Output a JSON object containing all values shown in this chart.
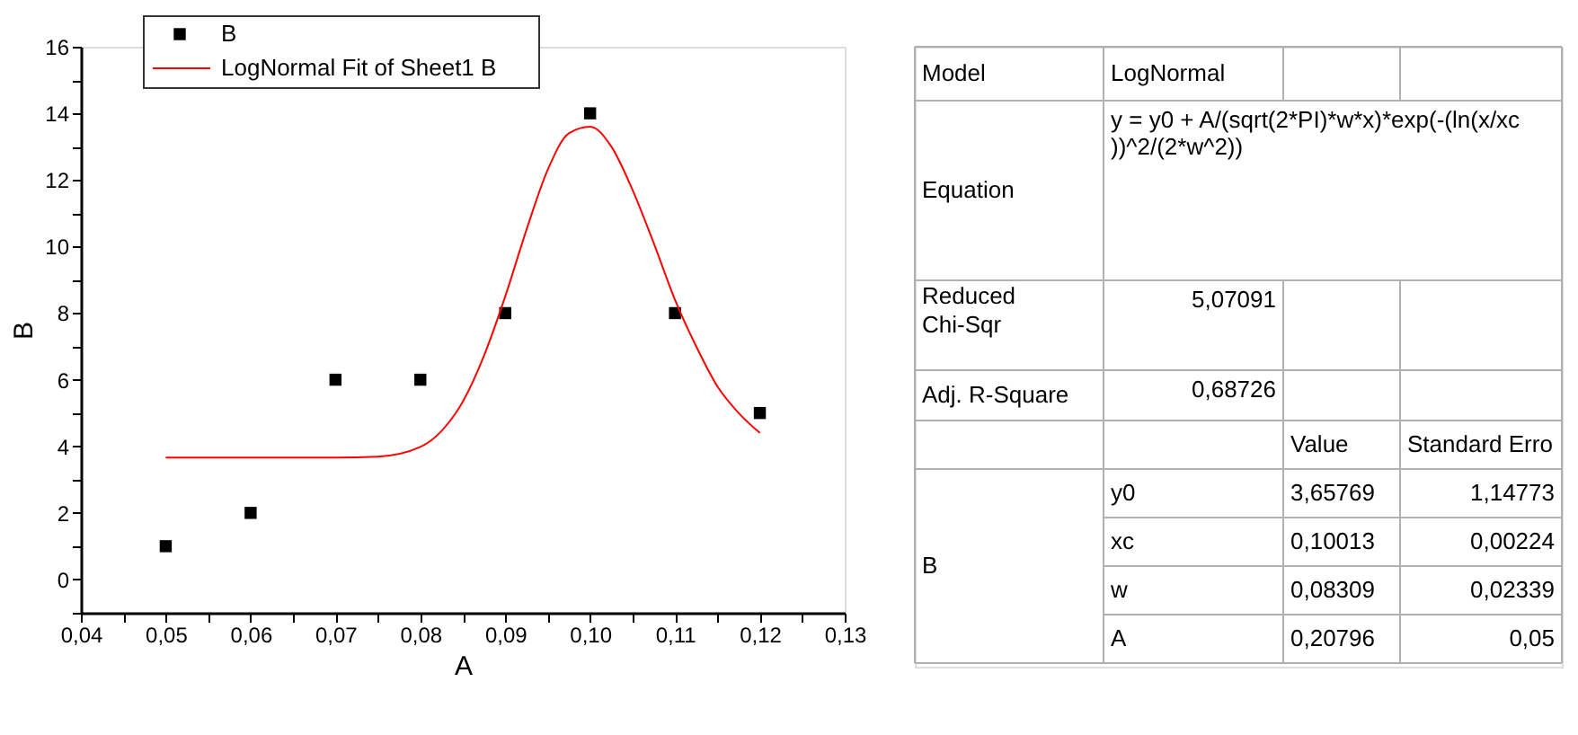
{
  "chart_data": [
    {
      "type": "scatter",
      "xlabel": "A",
      "ylabel": "B",
      "legend": "top left",
      "grid": false,
      "xlim": [
        0.04,
        0.13
      ],
      "xticks": [
        {
          "value": 0.04,
          "label": "0,04"
        },
        {
          "value": 0.045,
          "label": null
        },
        {
          "value": 0.05,
          "label": "0,05"
        },
        {
          "value": 0.055,
          "label": null
        },
        {
          "value": 0.06,
          "label": "0,06"
        },
        {
          "value": 0.065,
          "label": null
        },
        {
          "value": 0.07,
          "label": "0,07"
        },
        {
          "value": 0.075,
          "label": null
        },
        {
          "value": 0.08,
          "label": "0,08"
        },
        {
          "value": 0.085,
          "label": null
        },
        {
          "value": 0.09,
          "label": "0,09"
        },
        {
          "value": 0.095,
          "label": null
        },
        {
          "value": 0.1,
          "label": "0,10"
        },
        {
          "value": 0.105,
          "label": null
        },
        {
          "value": 0.11,
          "label": "0,11"
        },
        {
          "value": 0.115,
          "label": null
        },
        {
          "value": 0.12,
          "label": "0,12"
        },
        {
          "value": 0.125,
          "label": null
        },
        {
          "value": 0.13,
          "label": "0,13"
        }
      ],
      "ylim": [
        -1,
        16
      ],
      "yticks": [
        {
          "value": -1,
          "label": null
        },
        0,
        {
          "value": 1,
          "label": null
        },
        2,
        {
          "value": 3,
          "label": null
        },
        4,
        {
          "value": 5,
          "label": null
        },
        6,
        {
          "value": 7,
          "label": null
        },
        8,
        {
          "value": 9,
          "label": null
        },
        10,
        {
          "value": 11,
          "label": null
        },
        12,
        {
          "value": 13,
          "label": null
        },
        14,
        {
          "value": 15,
          "label": null
        },
        16
      ],
      "series": [
        {
          "name": "B",
          "type": "scatter",
          "marker": "square",
          "color": "#000000",
          "x": [
            0.05,
            0.06,
            0.07,
            0.08,
            0.09,
            0.1,
            0.11,
            0.12
          ],
          "values": [
            1,
            2,
            6,
            6,
            8,
            14,
            8,
            5
          ]
        },
        {
          "name": "LogNormal Fit of Sheet1 B",
          "type": "line",
          "marker": "none",
          "line_style": "solid",
          "color": "#ff0000",
          "x": [
            0.05,
            0.06,
            0.07,
            0.075,
            0.08,
            0.0825,
            0.085,
            0.0875,
            0.09,
            0.0925,
            0.095,
            0.0975,
            0.1,
            0.1025,
            0.105,
            0.1075,
            0.11,
            0.1125,
            0.115,
            0.1175,
            0.12
          ],
          "values": [
            3.66,
            3.66,
            3.66,
            3.69,
            3.98,
            4.46,
            5.34,
            6.72,
            8.5,
            10.5,
            12.3,
            13.4,
            13.6,
            13.0,
            11.7,
            10.1,
            8.4,
            7.0,
            5.8,
            5.0,
            4.4
          ]
        }
      ]
    },
    {
      "type": "other",
      "annotations": [
        "Model",
        "LogNormal",
        "Equation",
        "y = y0 + A/(sqrt(2*PI)*w*x)*exp(-(ln(x/xc",
        "))^2/(2*w^2))",
        "Reduced Chi-Sqr",
        "5,07091",
        "Adj. R-Square",
        "0,68726",
        "Value",
        "Standard Erro",
        "B",
        "y0",
        "3,65769",
        "1,14773",
        "xc",
        "0,10013",
        "0,00224",
        "w",
        "0,08309",
        "0,02339",
        "A",
        "0,20796",
        "0,05"
      ]
    }
  ]
}
